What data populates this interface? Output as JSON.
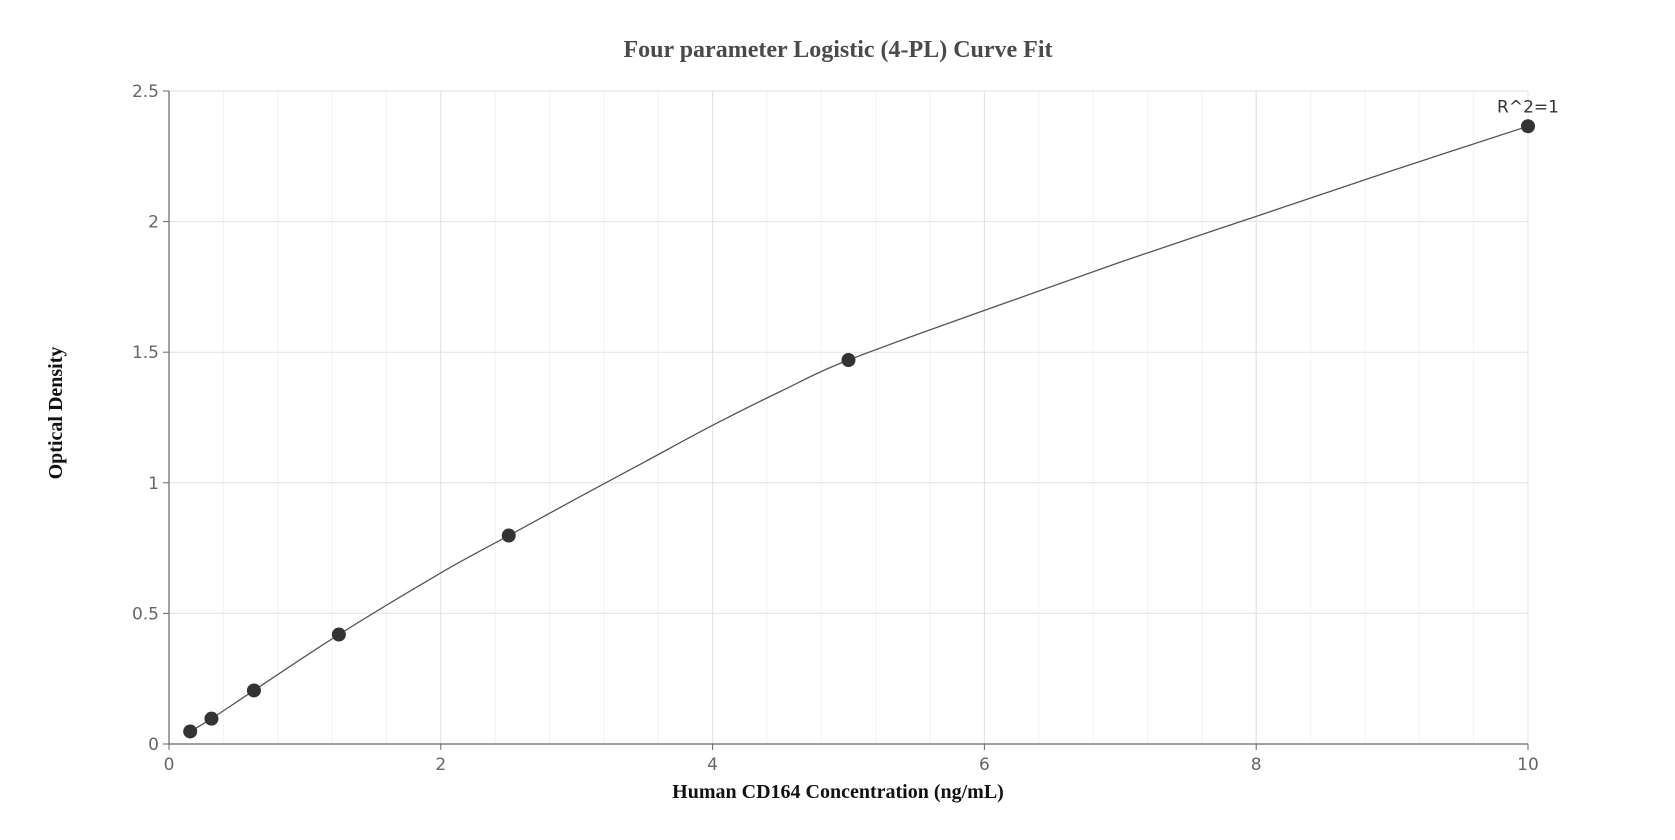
{
  "chart_data": {
    "type": "scatter",
    "title": "Four parameter Logistic (4-PL) Curve Fit",
    "xlabel": "Human CD164 Concentration (ng/mL)",
    "ylabel": "Optical Density",
    "xlim": [
      0,
      10
    ],
    "ylim": [
      0,
      2.5
    ],
    "x_ticks": [
      "0",
      "2",
      "4",
      "6",
      "8",
      "10"
    ],
    "y_ticks": [
      "0",
      "0.5",
      "1",
      "1.5",
      "2",
      "2.5"
    ],
    "grid": true,
    "series": [
      {
        "points": [
          {
            "x": 0.156,
            "y": 0.048
          },
          {
            "x": 0.3125,
            "y": 0.097
          },
          {
            "x": 0.625,
            "y": 0.205
          },
          {
            "x": 1.25,
            "y": 0.419
          },
          {
            "x": 2.5,
            "y": 0.798
          },
          {
            "x": 5,
            "y": 1.47
          },
          {
            "x": 10,
            "y": 2.365
          }
        ],
        "marker_color": "#333333"
      }
    ],
    "fit_curve": {
      "type": "4PL",
      "color": "#555555",
      "points": [
        {
          "x": 0.156,
          "y": 0.048
        },
        {
          "x": 0.3125,
          "y": 0.097
        },
        {
          "x": 0.625,
          "y": 0.205
        },
        {
          "x": 1.25,
          "y": 0.419
        },
        {
          "x": 2.0,
          "y": 0.655
        },
        {
          "x": 2.5,
          "y": 0.798
        },
        {
          "x": 3.0,
          "y": 0.94
        },
        {
          "x": 3.5,
          "y": 1.08
        },
        {
          "x": 4.0,
          "y": 1.22
        },
        {
          "x": 4.5,
          "y": 1.35
        },
        {
          "x": 5.0,
          "y": 1.47
        },
        {
          "x": 6.0,
          "y": 1.66
        },
        {
          "x": 7.0,
          "y": 1.845
        },
        {
          "x": 8.0,
          "y": 2.02
        },
        {
          "x": 9.0,
          "y": 2.195
        },
        {
          "x": 10.0,
          "y": 2.365
        }
      ]
    },
    "annotation": {
      "text": "R^2=1",
      "x": 10,
      "y": 2.365
    }
  }
}
